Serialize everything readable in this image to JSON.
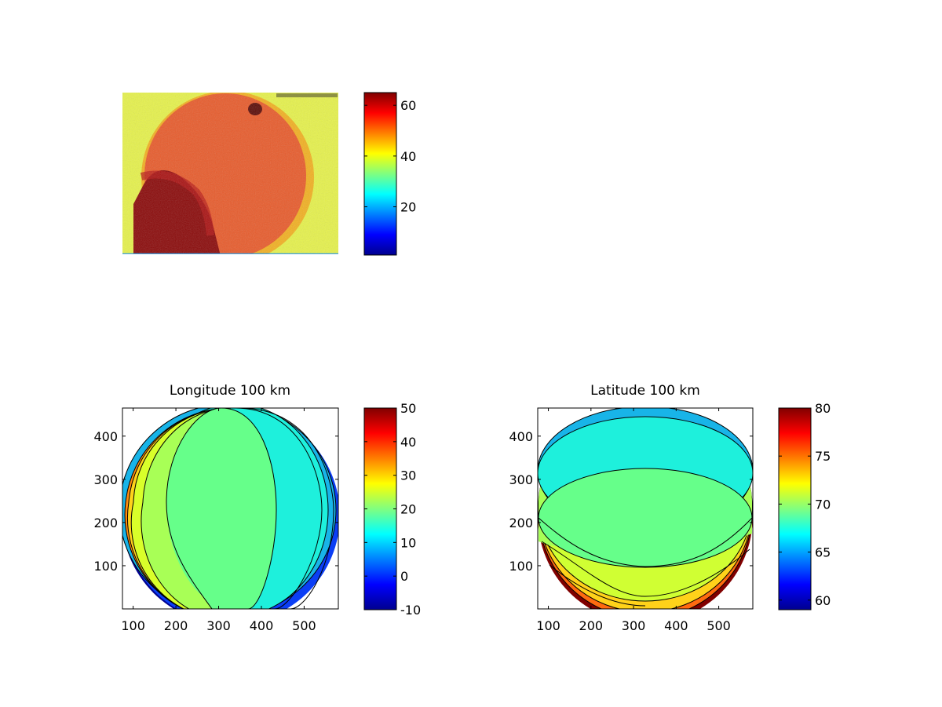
{
  "chart_data": [
    {
      "type": "heatmap",
      "title": "",
      "description_colormap": "jet",
      "colorbar": {
        "ticks": [
          20,
          40,
          60
        ],
        "range": [
          1,
          65
        ]
      },
      "axes_visible": false
    },
    {
      "type": "heatmap",
      "title": "Longitude 100 km",
      "xticks": [
        100,
        200,
        300,
        400,
        500
      ],
      "yticks": [
        100,
        200,
        300,
        400
      ],
      "xlim": [
        75,
        580
      ],
      "ylim": [
        0,
        465
      ],
      "colorbar": {
        "ticks": [
          -10,
          0,
          10,
          20,
          30,
          40,
          50
        ],
        "range": [
          -10,
          50
        ]
      }
    },
    {
      "type": "heatmap",
      "title": "Latitude 100 km",
      "xticks": [
        100,
        200,
        300,
        400,
        500
      ],
      "yticks": [
        100,
        200,
        300,
        400
      ],
      "xlim": [
        75,
        580
      ],
      "ylim": [
        0,
        465
      ],
      "colorbar": {
        "ticks": [
          60,
          65,
          70,
          75,
          80
        ],
        "range": [
          59,
          80
        ]
      }
    }
  ]
}
